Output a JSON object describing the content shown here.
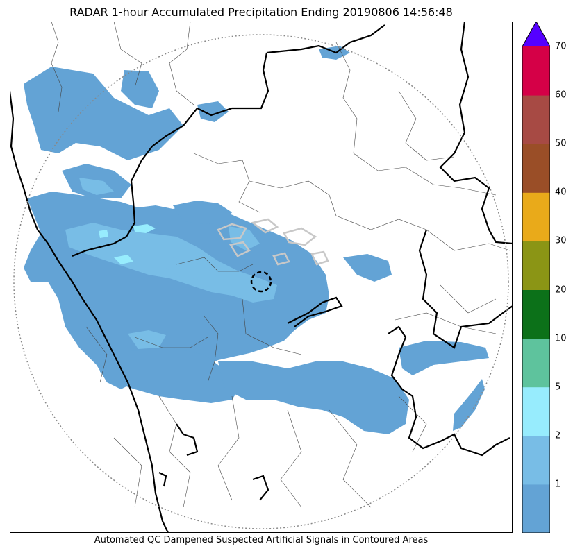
{
  "title": "RADAR 1-hour Accumulated Precipitation Ending 20190806 14:56:48",
  "caption": "Automated QC Dampened Suspected Artificial Signals in Contoured Areas",
  "colorbar": {
    "extend": "max",
    "overflow_color": "#5500ff",
    "bins": [
      {
        "from": "0",
        "to": "1",
        "color": "#63a3d5"
      },
      {
        "from": "1",
        "to": "2",
        "color": "#78bde6"
      },
      {
        "from": "2",
        "to": "5",
        "color": "#97ecfd"
      },
      {
        "from": "5",
        "to": "10",
        "color": "#5ec39d"
      },
      {
        "from": "10",
        "to": "20",
        "color": "#0c7119"
      },
      {
        "from": "20",
        "to": "30",
        "color": "#8b9515"
      },
      {
        "from": "30",
        "to": "40",
        "color": "#e9aa1a"
      },
      {
        "from": "40",
        "to": "50",
        "color": "#9a4e27"
      },
      {
        "from": "50",
        "to": "60",
        "color": "#a74a44"
      },
      {
        "from": "60",
        "to": "70",
        "color": "#d50047"
      }
    ],
    "tick_labels": [
      "1",
      "2",
      "5",
      "10",
      "20",
      "30",
      "40",
      "50",
      "60",
      "70"
    ]
  },
  "map": {
    "radar_range_ring": "dotted-gray",
    "radar_site_marker": "dashed-black-circle",
    "precip_light_color": "#63a3d5",
    "precip_moderate_color": "#78bde6",
    "precip_heavy_color": "#97ecfd",
    "qc_contour_color": "#c8c8c8"
  }
}
